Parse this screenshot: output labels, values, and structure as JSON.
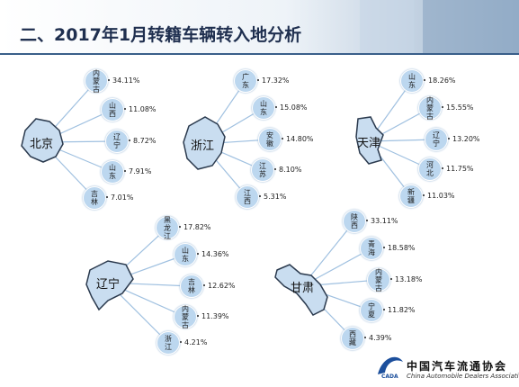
{
  "header": {
    "title": "二、2017年1月转籍车辆转入地分析"
  },
  "groups": [
    {
      "source": "北京",
      "destinations": [
        {
          "name": "内蒙古",
          "share": "34.11%"
        },
        {
          "name": "山西",
          "share": "11.08%"
        },
        {
          "name": "辽宁",
          "share": "8.72%"
        },
        {
          "name": "山东",
          "share": "7.91%"
        },
        {
          "name": "吉林",
          "share": "7.01%"
        }
      ]
    },
    {
      "source": "浙江",
      "destinations": [
        {
          "name": "广东",
          "share": "17.32%"
        },
        {
          "name": "山东",
          "share": "15.08%"
        },
        {
          "name": "安徽",
          "share": "14.80%"
        },
        {
          "name": "江苏",
          "share": "8.10%"
        },
        {
          "name": "江西",
          "share": "5.31%"
        }
      ]
    },
    {
      "source": "天津",
      "destinations": [
        {
          "name": "山东",
          "share": "18.26%"
        },
        {
          "name": "内蒙古",
          "share": "15.55%"
        },
        {
          "name": "辽宁",
          "share": "13.20%"
        },
        {
          "name": "河北",
          "share": "11.75%"
        },
        {
          "name": "新疆",
          "share": "11.03%"
        }
      ]
    },
    {
      "source": "辽宁",
      "destinations": [
        {
          "name": "黑龙江",
          "share": "17.82%"
        },
        {
          "name": "山东",
          "share": "14.36%"
        },
        {
          "name": "吉林",
          "share": "12.62%"
        },
        {
          "name": "内蒙古",
          "share": "11.39%"
        },
        {
          "name": "浙江",
          "share": "4.21%"
        }
      ]
    },
    {
      "source": "甘肃",
      "destinations": [
        {
          "name": "陕西",
          "share": "33.11%"
        },
        {
          "name": "青海",
          "share": "18.58%"
        },
        {
          "name": "内蒙古",
          "share": "13.18%"
        },
        {
          "name": "宁夏",
          "share": "11.82%"
        },
        {
          "name": "西藏",
          "share": "4.39%"
        }
      ]
    }
  ],
  "logo": {
    "name": "中国汽车流通协会",
    "english": "China Automobile Dealers Association",
    "abbr": "CADA"
  }
}
